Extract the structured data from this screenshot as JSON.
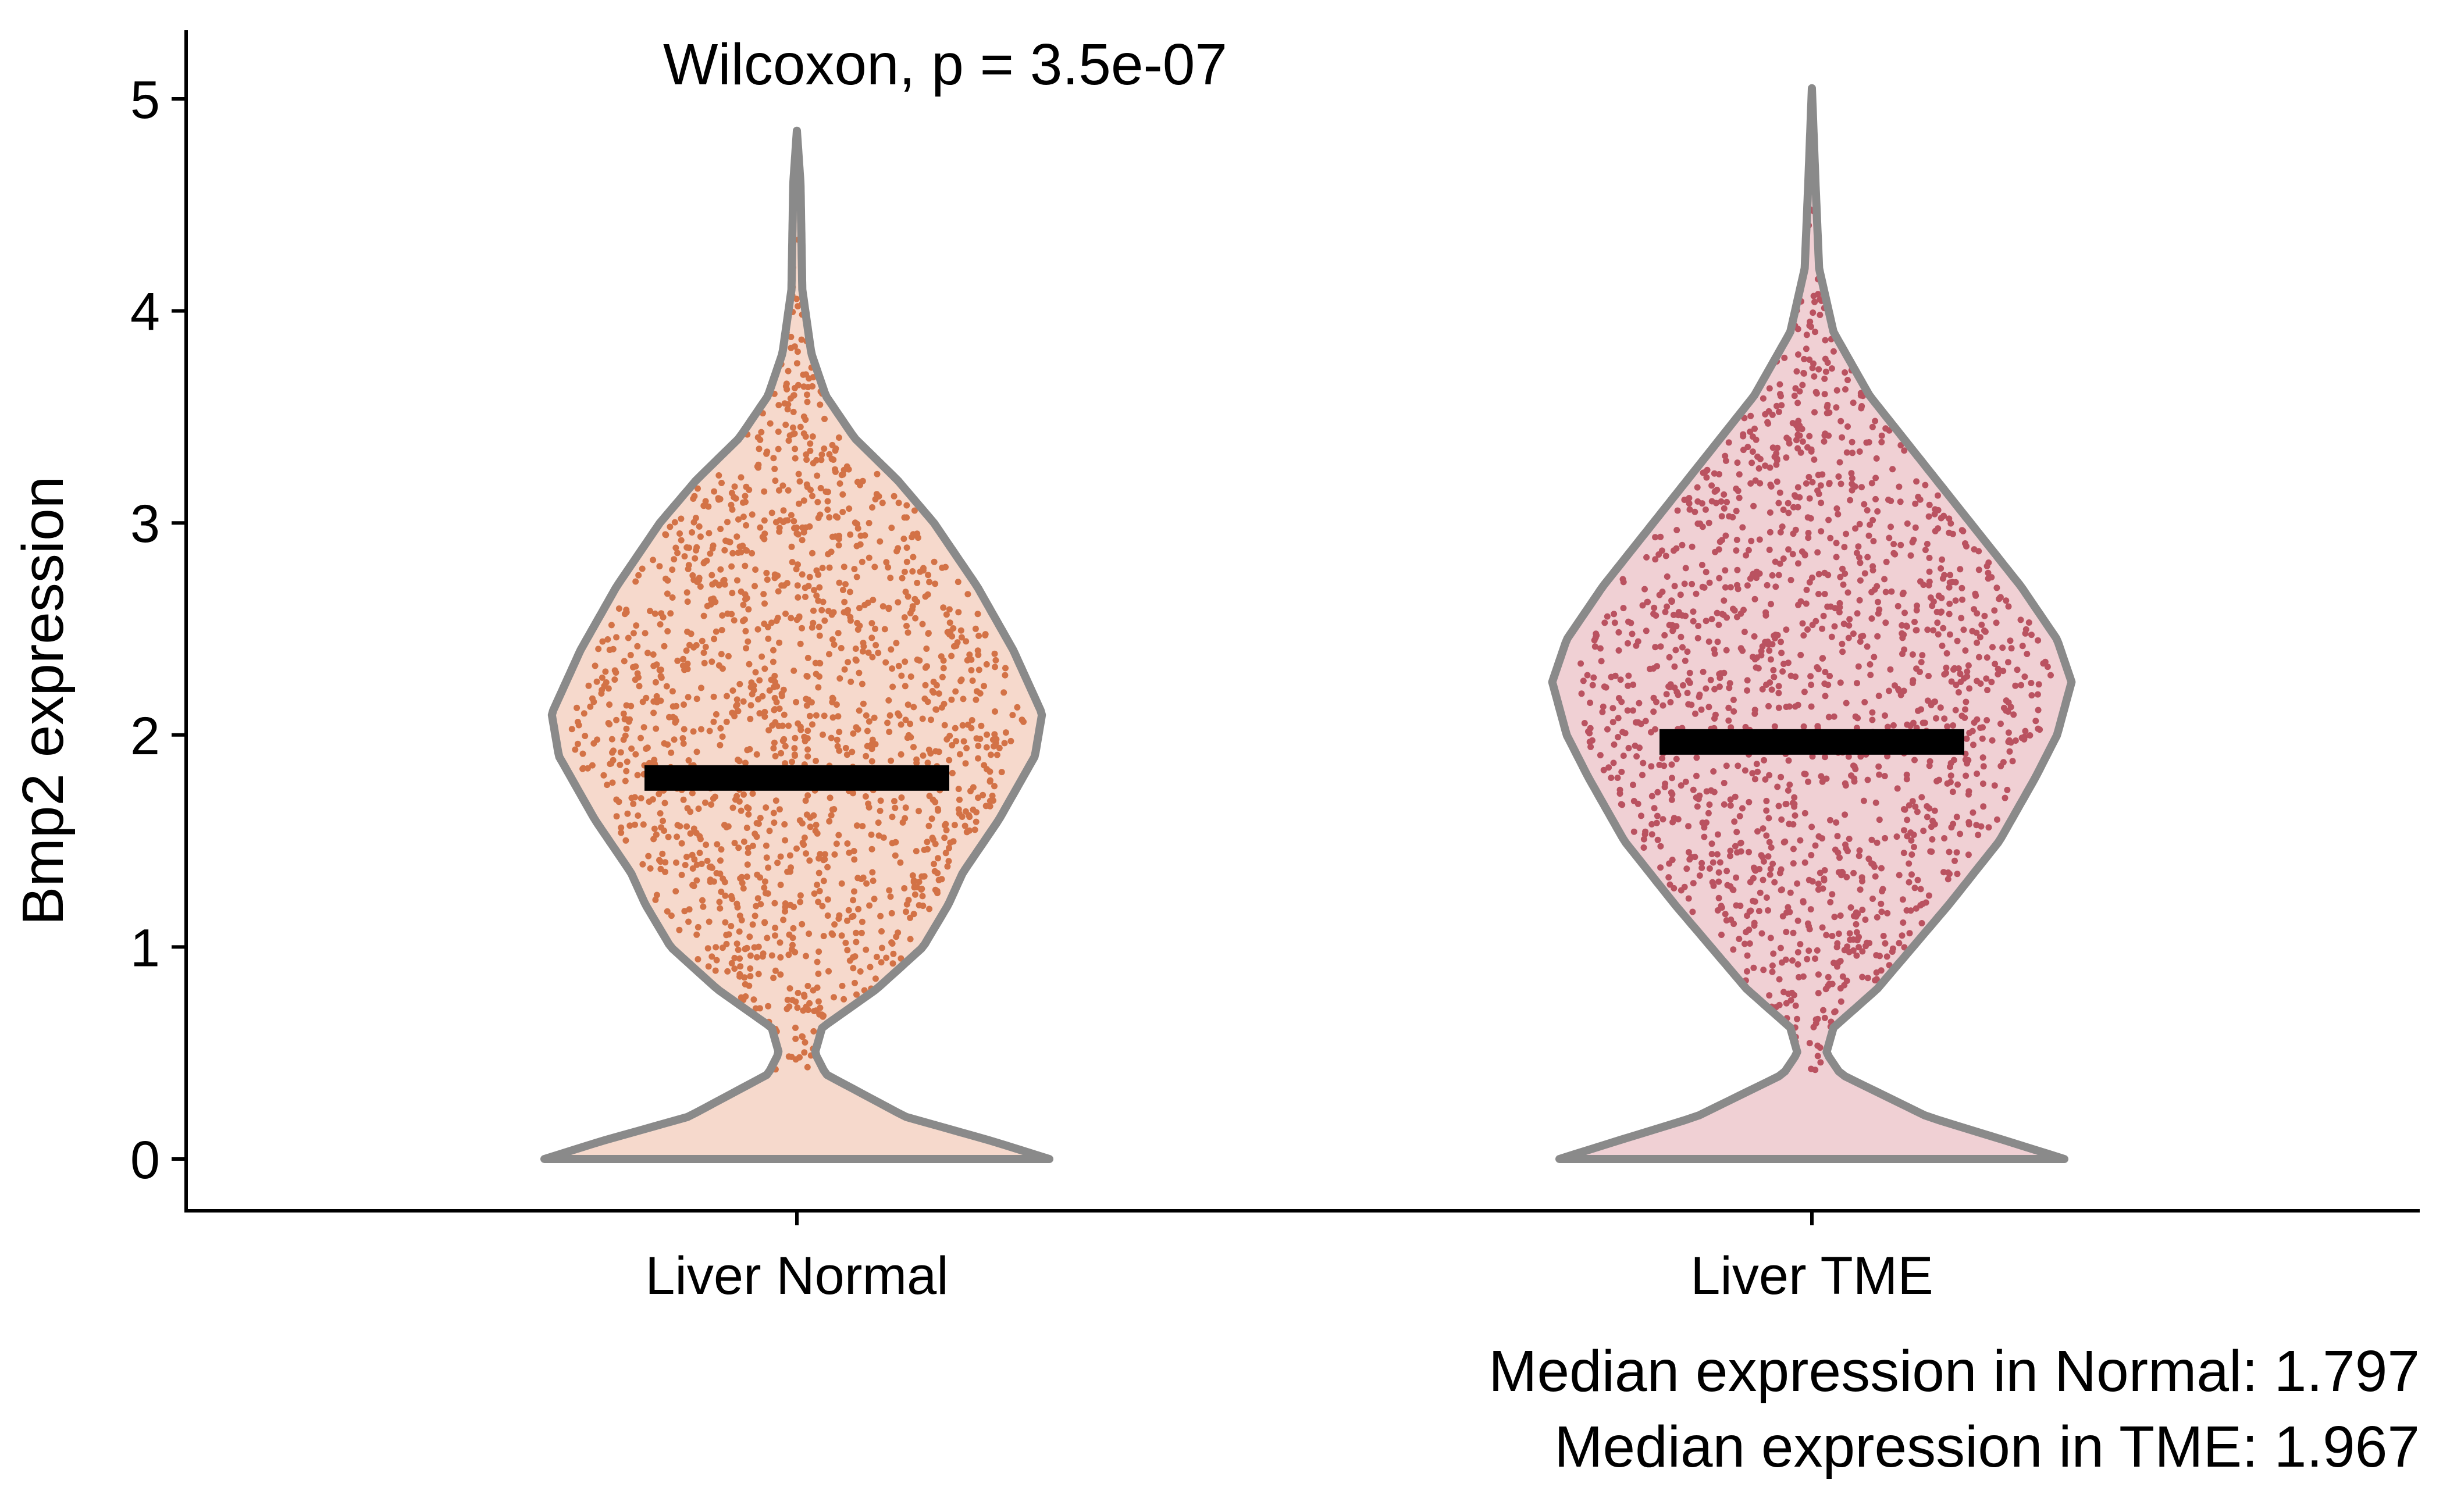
{
  "chart_data": {
    "type": "violin",
    "title": "",
    "ylabel": "Bmp2 expression",
    "xlabel": "",
    "categories": [
      "Liver Normal",
      "Liver TME"
    ],
    "ylim": [
      -0.25,
      5.3
    ],
    "yticks": [
      0,
      1,
      2,
      3,
      4,
      5
    ],
    "grid": false,
    "legend": "none",
    "annotation_top": "Wilcoxon, p = 3.5e-07",
    "caption_lines": [
      "Median expression in Normal: 1.797",
      "Median expression in TME: 1.967"
    ],
    "series": [
      {
        "category": "Liver Normal",
        "median": 1.797,
        "point_color": "#c8501a",
        "fill_color": "#f6d9cc",
        "max": 4.85,
        "density_profile": [
          [
            0,
            0.7
          ],
          [
            0.08,
            0.55
          ],
          [
            0.2,
            0.3
          ],
          [
            0.4,
            0.08
          ],
          [
            0.5,
            0.05
          ],
          [
            0.62,
            0.07
          ],
          [
            0.8,
            0.22
          ],
          [
            1.0,
            0.35
          ],
          [
            1.2,
            0.42
          ],
          [
            1.35,
            0.46
          ],
          [
            1.6,
            0.56
          ],
          [
            1.9,
            0.66
          ],
          [
            2.1,
            0.68
          ],
          [
            2.4,
            0.6
          ],
          [
            2.7,
            0.5
          ],
          [
            3.0,
            0.38
          ],
          [
            3.2,
            0.28
          ],
          [
            3.4,
            0.16
          ],
          [
            3.6,
            0.08
          ],
          [
            3.8,
            0.04
          ],
          [
            4.1,
            0.015
          ],
          [
            4.6,
            0.01
          ],
          [
            4.85,
            0.0
          ]
        ]
      },
      {
        "category": "Liver TME",
        "median": 1.967,
        "point_color": "#a8283a",
        "fill_color": "#f0d0d4",
        "max": 5.05,
        "density_profile": [
          [
            0,
            0.7
          ],
          [
            0.08,
            0.55
          ],
          [
            0.2,
            0.32
          ],
          [
            0.4,
            0.08
          ],
          [
            0.5,
            0.04
          ],
          [
            0.62,
            0.06
          ],
          [
            0.8,
            0.18
          ],
          [
            1.0,
            0.28
          ],
          [
            1.2,
            0.38
          ],
          [
            1.5,
            0.52
          ],
          [
            1.8,
            0.62
          ],
          [
            2.0,
            0.68
          ],
          [
            2.25,
            0.72
          ],
          [
            2.45,
            0.68
          ],
          [
            2.7,
            0.58
          ],
          [
            3.0,
            0.44
          ],
          [
            3.3,
            0.3
          ],
          [
            3.6,
            0.16
          ],
          [
            3.9,
            0.06
          ],
          [
            4.2,
            0.02
          ],
          [
            4.6,
            0.01
          ],
          [
            5.05,
            0.0
          ]
        ]
      }
    ]
  }
}
